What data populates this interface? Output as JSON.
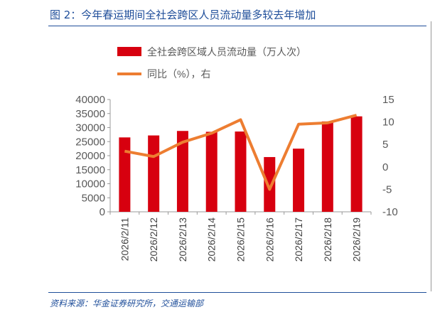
{
  "title": "图 2：今年春运期间全社会跨区人员流动量多较去年增加",
  "source": "资料来源：华金证券研究所，交通运输部",
  "chart_data": {
    "type": "bar+line",
    "categories": [
      "2026/2/11",
      "2026/2/12",
      "2026/2/13",
      "2026/2/14",
      "2026/2/15",
      "2026/2/16",
      "2026/2/17",
      "2026/2/18",
      "2026/2/19"
    ],
    "series": [
      {
        "name": "全社会跨区域人员流动量（万人次）",
        "type": "bar",
        "axis": "left",
        "color": "#d7000f",
        "values": [
          26500,
          27200,
          28800,
          28500,
          28600,
          19500,
          22500,
          32200,
          34000
        ]
      },
      {
        "name": "同比（%），右",
        "type": "line",
        "axis": "right",
        "color": "#ed7d31",
        "values": [
          3.5,
          2.3,
          5.5,
          7.5,
          10.5,
          -5,
          9.5,
          9.8,
          11.5
        ]
      }
    ],
    "left_axis": {
      "range": [
        0,
        40000
      ],
      "ticks": [
        0,
        5000,
        10000,
        15000,
        20000,
        25000,
        30000,
        35000,
        40000
      ]
    },
    "right_axis": {
      "range": [
        -10,
        15
      ],
      "ticks": [
        -10,
        -5,
        0,
        5,
        10,
        15
      ]
    },
    "legend": "top-left",
    "grid": false
  }
}
